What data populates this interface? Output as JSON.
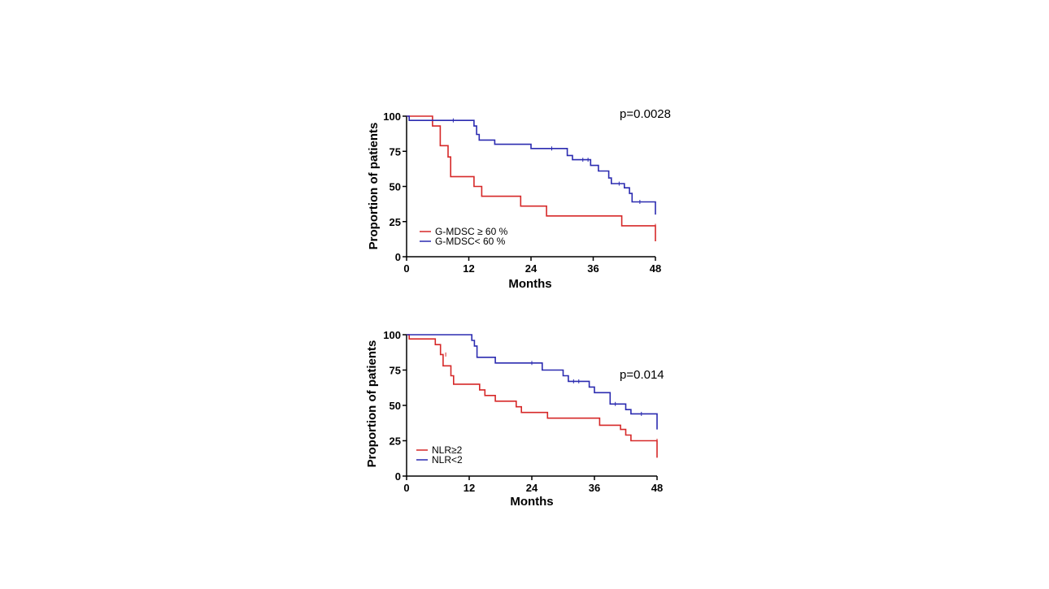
{
  "colors": {
    "red": "#d62828",
    "blue": "#2b2bb0",
    "axis": "#000000"
  },
  "chart_data": [
    {
      "type": "line",
      "subtype": "kaplan-meier",
      "xlabel": "Months",
      "ylabel": "Proportion of patients",
      "xlim": [
        0,
        48
      ],
      "ylim": [
        0,
        100
      ],
      "xticks": [
        "0",
        "12",
        "24",
        "36",
        "48"
      ],
      "yticks": [
        "0",
        "25",
        "50",
        "75",
        "100"
      ],
      "annotation": "p=0.0028",
      "annotation_position": "top-right",
      "legend_position": "bottom-left",
      "grid": false,
      "series": [
        {
          "name": "G-MDSC ≥ 60 %",
          "color": "red",
          "steps": [
            [
              0,
              100
            ],
            [
              5,
              100
            ],
            [
              5,
              93
            ],
            [
              6.5,
              93
            ],
            [
              6.5,
              79
            ],
            [
              8,
              79
            ],
            [
              8,
              71
            ],
            [
              8.5,
              71
            ],
            [
              8.5,
              57
            ],
            [
              13,
              57
            ],
            [
              13,
              50
            ],
            [
              14.5,
              50
            ],
            [
              14.5,
              43
            ],
            [
              22,
              43
            ],
            [
              22,
              36
            ],
            [
              27,
              36
            ],
            [
              27,
              29
            ],
            [
              41.5,
              29
            ],
            [
              41.5,
              22
            ],
            [
              48,
              22
            ],
            [
              48,
              11
            ]
          ],
          "censors": [
            [
              48,
              22
            ]
          ]
        },
        {
          "name": "G-MDSC< 60 %",
          "color": "blue",
          "steps": [
            [
              0,
              100
            ],
            [
              0.5,
              100
            ],
            [
              0.5,
              97
            ],
            [
              13,
              97
            ],
            [
              13,
              93
            ],
            [
              13.5,
              93
            ],
            [
              13.5,
              87
            ],
            [
              14,
              87
            ],
            [
              14,
              83
            ],
            [
              17,
              83
            ],
            [
              17,
              80
            ],
            [
              24,
              80
            ],
            [
              24,
              77
            ],
            [
              31,
              77
            ],
            [
              31,
              72
            ],
            [
              32,
              72
            ],
            [
              32,
              69
            ],
            [
              35.5,
              69
            ],
            [
              35.5,
              65
            ],
            [
              37,
              65
            ],
            [
              37,
              61
            ],
            [
              39,
              61
            ],
            [
              39,
              56
            ],
            [
              39.5,
              56
            ],
            [
              39.5,
              52
            ],
            [
              42,
              52
            ],
            [
              42,
              49
            ],
            [
              43,
              49
            ],
            [
              43,
              45
            ],
            [
              43.5,
              45
            ],
            [
              43.5,
              39
            ],
            [
              48,
              39
            ],
            [
              48,
              30
            ]
          ],
          "censors": [
            [
              9,
              97
            ],
            [
              28,
              77
            ],
            [
              34,
              69
            ],
            [
              35,
              69
            ],
            [
              41,
              52
            ],
            [
              45,
              39
            ]
          ]
        }
      ]
    },
    {
      "type": "line",
      "subtype": "kaplan-meier",
      "xlabel": "Months",
      "ylabel": "Proportion of patients",
      "xlim": [
        0,
        48
      ],
      "ylim": [
        0,
        100
      ],
      "xticks": [
        "0",
        "12",
        "24",
        "36",
        "48"
      ],
      "yticks": [
        "0",
        "25",
        "50",
        "75",
        "100"
      ],
      "annotation": "p=0.014",
      "annotation_position": "right",
      "legend_position": "bottom-left",
      "grid": false,
      "series": [
        {
          "name": "NLR≥2",
          "color": "red",
          "steps": [
            [
              0,
              100
            ],
            [
              0.5,
              100
            ],
            [
              0.5,
              97
            ],
            [
              5.5,
              97
            ],
            [
              5.5,
              93
            ],
            [
              6.5,
              93
            ],
            [
              6.5,
              86
            ],
            [
              7,
              86
            ],
            [
              7,
              78
            ],
            [
              8.5,
              78
            ],
            [
              8.5,
              71
            ],
            [
              9,
              71
            ],
            [
              9,
              65
            ],
            [
              14,
              65
            ],
            [
              14,
              61
            ],
            [
              15,
              61
            ],
            [
              15,
              57
            ],
            [
              17,
              57
            ],
            [
              17,
              53
            ],
            [
              21,
              53
            ],
            [
              21,
              49
            ],
            [
              22,
              49
            ],
            [
              22,
              45
            ],
            [
              27,
              45
            ],
            [
              27,
              41
            ],
            [
              37,
              41
            ],
            [
              37,
              36
            ],
            [
              41,
              36
            ],
            [
              41,
              33
            ],
            [
              42,
              33
            ],
            [
              42,
              29
            ],
            [
              43,
              29
            ],
            [
              43,
              25
            ],
            [
              48,
              25
            ],
            [
              48,
              13
            ]
          ],
          "censors": [
            [
              7.5,
              86
            ],
            [
              48,
              25
            ]
          ]
        },
        {
          "name": "NLR<2",
          "color": "blue",
          "steps": [
            [
              0,
              100
            ],
            [
              12.5,
              100
            ],
            [
              12.5,
              96
            ],
            [
              13,
              96
            ],
            [
              13,
              92
            ],
            [
              13.5,
              92
            ],
            [
              13.5,
              84
            ],
            [
              17,
              84
            ],
            [
              17,
              80
            ],
            [
              26,
              80
            ],
            [
              26,
              75
            ],
            [
              30,
              75
            ],
            [
              30,
              71
            ],
            [
              31,
              71
            ],
            [
              31,
              67
            ],
            [
              35,
              67
            ],
            [
              35,
              63
            ],
            [
              36,
              63
            ],
            [
              36,
              59
            ],
            [
              39,
              59
            ],
            [
              39,
              51
            ],
            [
              42,
              51
            ],
            [
              42,
              47
            ],
            [
              43,
              47
            ],
            [
              43,
              44
            ],
            [
              48,
              44
            ],
            [
              48,
              33
            ]
          ],
          "censors": [
            [
              24,
              80
            ],
            [
              32,
              67
            ],
            [
              33,
              67
            ],
            [
              40,
              51
            ],
            [
              45,
              44
            ]
          ]
        }
      ]
    }
  ]
}
